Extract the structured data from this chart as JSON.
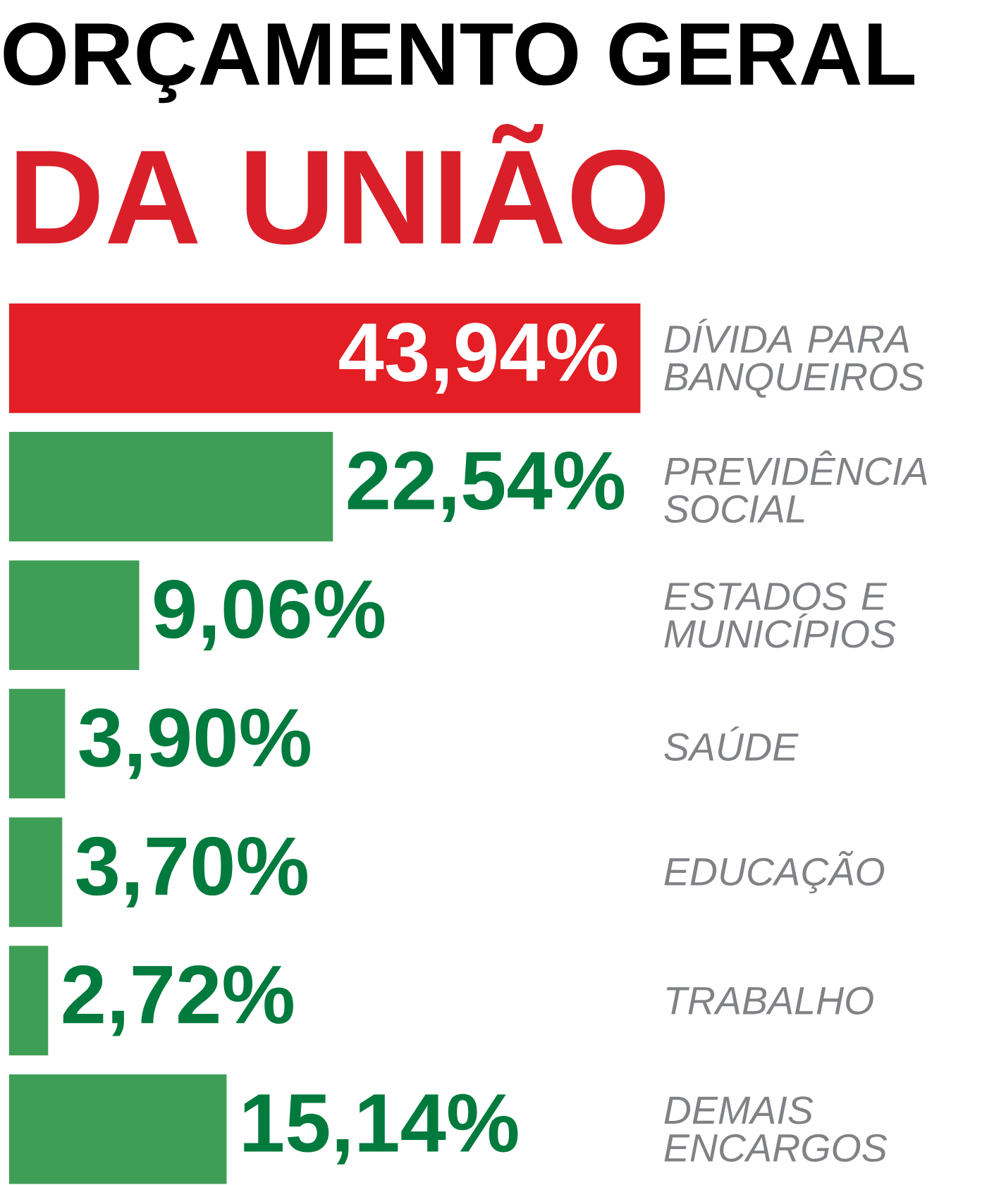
{
  "chart_data": {
    "type": "bar",
    "orientation": "horizontal",
    "title": "ORÇAMENTO GERAL",
    "subtitle": "DA UNIÃO",
    "categories": [
      "DÍVIDA PARA BANQUEIROS",
      "PREVIDÊNCIA SOCIAL",
      "ESTADOS E MUNICÍPIOS",
      "SAÚDE",
      "EDUCAÇÃO",
      "TRABALHO",
      "DEMAIS ENCARGOS"
    ],
    "values": [
      43.94,
      22.54,
      9.06,
      3.9,
      3.7,
      2.72,
      15.14
    ],
    "value_labels": [
      "43,94%",
      "22,54%",
      "9,06%",
      "3,90%",
      "3,70%",
      "2,72%",
      "15,14%"
    ],
    "colors": [
      "#e31e24",
      "#3f9e56",
      "#3f9e56",
      "#3f9e56",
      "#3f9e56",
      "#3f9e56",
      "#3f9e56"
    ]
  }
}
